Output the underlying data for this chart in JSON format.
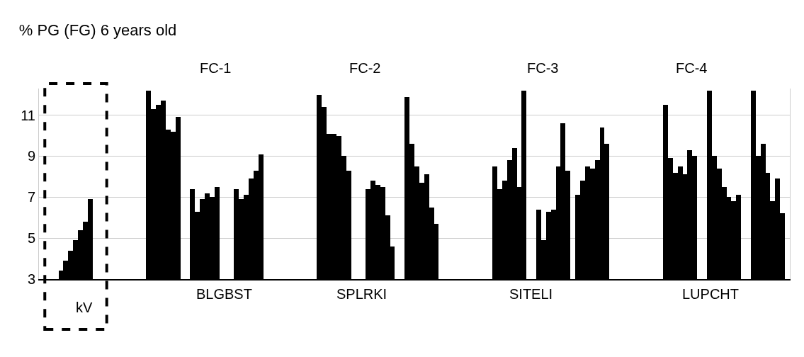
{
  "chart_data": {
    "type": "bar",
    "title": "% PG (FG) 6 years old",
    "categories": [
      null,
      null,
      null,
      null,
      null,
      null,
      null,
      null,
      null,
      null,
      null,
      null,
      null,
      null,
      null,
      null,
      null,
      null,
      null,
      null,
      null,
      null,
      null,
      null,
      null,
      null,
      null,
      null,
      null,
      null,
      null,
      null,
      null,
      null,
      null,
      null,
      null,
      null,
      null,
      null,
      null,
      null,
      null,
      null,
      null,
      null,
      null,
      null,
      null,
      null,
      null,
      null,
      null,
      null,
      null,
      null,
      null,
      null,
      null,
      null,
      null,
      null,
      null,
      null,
      null,
      null,
      null,
      null,
      null,
      null,
      null,
      null,
      null,
      null,
      null,
      null,
      null,
      null,
      null,
      null,
      null,
      null,
      null,
      null,
      null,
      null,
      null,
      null,
      null,
      null,
      null,
      null,
      null,
      null,
      null,
      null,
      null,
      null,
      null,
      null,
      null,
      null,
      null,
      null,
      null,
      null,
      null,
      null,
      null,
      null,
      null,
      null,
      null,
      null,
      null,
      null,
      null,
      null,
      null,
      null,
      null,
      null,
      null,
      null,
      null,
      null,
      null,
      null,
      null,
      null,
      null,
      null,
      null,
      null,
      null,
      null,
      null,
      null,
      null,
      null,
      null,
      null,
      null,
      null,
      null,
      null,
      null,
      null,
      null,
      null,
      null,
      null,
      null,
      null
    ],
    "values": [
      null,
      null,
      null,
      null,
      3.4,
      3.9,
      4.4,
      4.9,
      5.4,
      5.8,
      6.9,
      null,
      null,
      null,
      null,
      null,
      null,
      null,
      null,
      null,
      null,
      null,
      12.2,
      11.3,
      11.5,
      11.7,
      10.3,
      10.2,
      10.9,
      null,
      null,
      7.4,
      6.3,
      6.9,
      7.2,
      7.0,
      7.5,
      null,
      null,
      null,
      7.4,
      6.9,
      7.1,
      7.9,
      8.3,
      9.1,
      null,
      null,
      null,
      null,
      null,
      null,
      null,
      null,
      null,
      null,
      null,
      12.0,
      11.4,
      10.1,
      10.1,
      10.0,
      9.0,
      8.3,
      null,
      null,
      null,
      7.4,
      7.8,
      7.6,
      7.5,
      6.1,
      4.6,
      null,
      null,
      11.9,
      9.6,
      8.5,
      7.7,
      8.1,
      6.5,
      5.7,
      null,
      null,
      null,
      null,
      null,
      null,
      null,
      null,
      null,
      null,
      null,
      8.5,
      7.4,
      7.8,
      8.8,
      9.4,
      7.5,
      12.2,
      null,
      null,
      6.4,
      4.9,
      6.3,
      6.4,
      8.5,
      10.6,
      8.3,
      null,
      7.1,
      7.8,
      8.5,
      8.4,
      8.8,
      10.4,
      9.6,
      null,
      null,
      null,
      null,
      null,
      null,
      null,
      null,
      null,
      null,
      null,
      11.5,
      8.9,
      8.2,
      8.5,
      8.1,
      9.3,
      9.0,
      null,
      null,
      12.2,
      9.0,
      8.4,
      7.5,
      7.0,
      6.8,
      7.1,
      null,
      null,
      12.2,
      9.0,
      9.6,
      8.2,
      6.8,
      7.9,
      6.2,
      null
    ],
    "color": "#000000",
    "ylim": [
      3,
      12.3
    ],
    "yticks": [
      3,
      5,
      7,
      9,
      11
    ],
    "grid": "y",
    "annotations": [
      "FC-1",
      "FC-2",
      "FC-3",
      "FC-4",
      "kV",
      "BLGBST",
      "SPLRKI",
      "SITELI",
      "LUPCHT"
    ]
  }
}
